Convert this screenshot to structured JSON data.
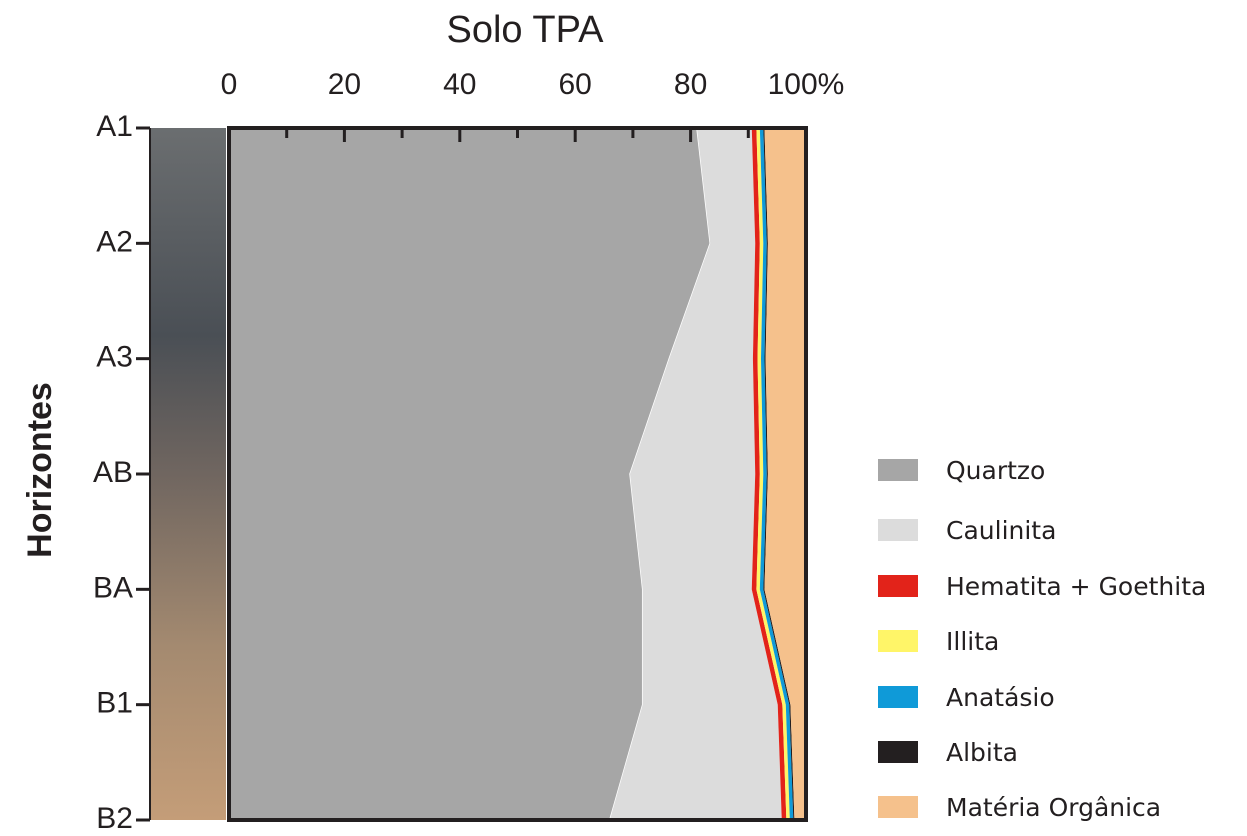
{
  "chart_data": {
    "type": "stacked-area-horizontal",
    "title": "Solo TPA",
    "y_label": "Horizontes",
    "categories": [
      "A1",
      "A2",
      "A3",
      "AB",
      "BA",
      "B1",
      "B2"
    ],
    "series": [
      {
        "name": "Quartzo",
        "color": "#a6a6a6",
        "values": [
          81.1,
          83.4,
          76.3,
          69.5,
          71.7,
          71.7,
          66.0
        ]
      },
      {
        "name": "Caulinita",
        "color": "#dcdcdc",
        "values": [
          9.5,
          7.8,
          14.5,
          21.7,
          18.9,
          23.4,
          29.8
        ]
      },
      {
        "name": "Hematita + Goethita",
        "color": "#e2231a",
        "values": [
          0.8,
          0.8,
          0.8,
          0.8,
          0.8,
          0.8,
          0.8
        ]
      },
      {
        "name": "Illita",
        "color": "#fff568",
        "values": [
          0.6,
          0.6,
          0.6,
          0.6,
          0.6,
          0.6,
          0.6
        ]
      },
      {
        "name": "Anatásio",
        "color": "#0f9ad8",
        "values": [
          0.6,
          0.6,
          0.6,
          0.6,
          0.6,
          0.6,
          0.6
        ]
      },
      {
        "name": "Albita",
        "color": "#231f20",
        "values": [
          0.2,
          0.2,
          0.2,
          0.2,
          0.2,
          0.2,
          0.2
        ]
      },
      {
        "name": "Matéria Orgânica",
        "color": "#f5c18c",
        "values": [
          7.2,
          6.6,
          7.0,
          6.6,
          7.2,
          2.7,
          2.0
        ]
      }
    ],
    "xlim": [
      0,
      100
    ],
    "xticks": [
      0,
      20,
      40,
      60,
      80,
      {
        "value": 100,
        "label": "100%"
      }
    ],
    "xminorticks": [
      10,
      30,
      50,
      70,
      90
    ]
  }
}
